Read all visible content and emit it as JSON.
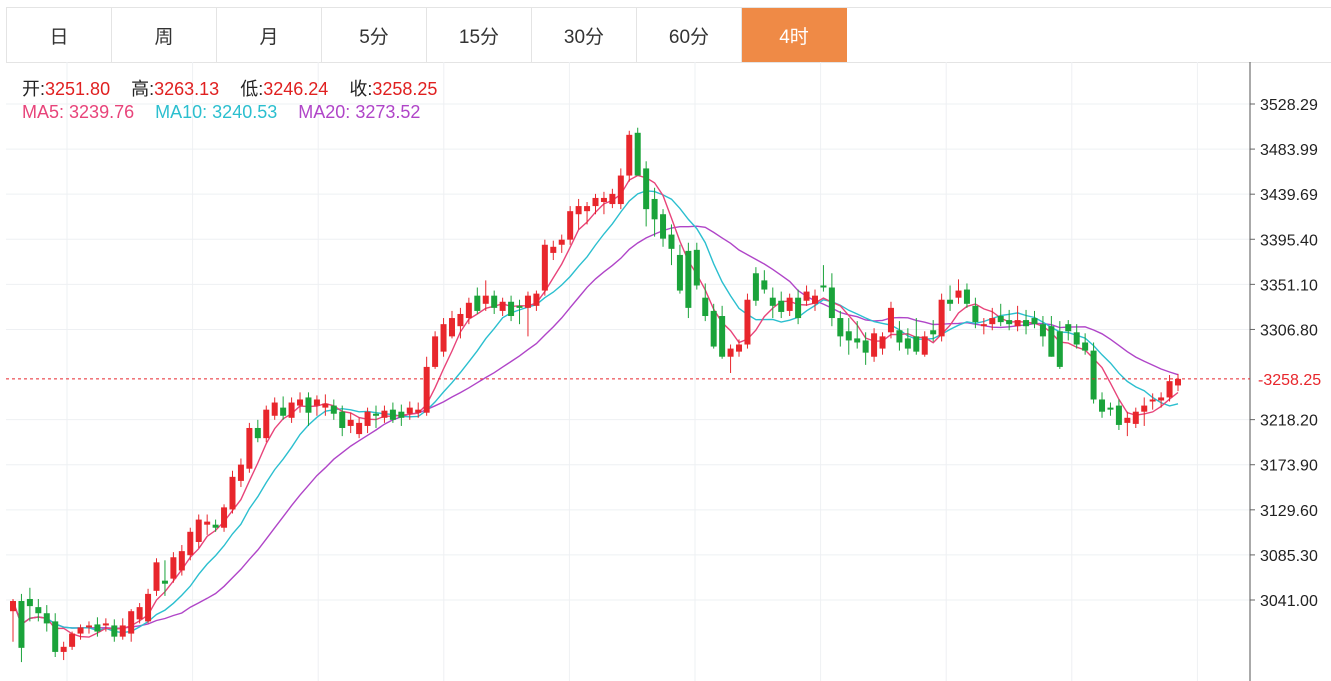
{
  "tabs": [
    {
      "label": "日",
      "active": false
    },
    {
      "label": "周",
      "active": false
    },
    {
      "label": "月",
      "active": false
    },
    {
      "label": "5分",
      "active": false
    },
    {
      "label": "15分",
      "active": false
    },
    {
      "label": "30分",
      "active": false
    },
    {
      "label": "60分",
      "active": false
    },
    {
      "label": "4时",
      "active": true
    }
  ],
  "ohlc": {
    "open_label": "开:",
    "open": "3251.80",
    "high_label": "高:",
    "high": "3263.13",
    "low_label": "低:",
    "low": "3246.24",
    "close_label": "收:",
    "close": "3258.25"
  },
  "ma": {
    "ma5_label": "MA5:",
    "ma5": "3239.76",
    "ma10_label": "MA10:",
    "ma10": "3240.53",
    "ma20_label": "MA20:",
    "ma20": "3273.52"
  },
  "colors": {
    "up": "#e8262c",
    "down": "#1aa33a",
    "ma5": "#e8447a",
    "ma10": "#2bbfcf",
    "ma20": "#b045c8",
    "active_tab": "#ef8a46"
  },
  "chart_data": {
    "type": "candlestick",
    "ylim": [
      2995,
      3565
    ],
    "yticks": [
      "3528.29",
      "3483.99",
      "3439.69",
      "3395.40",
      "3351.10",
      "3306.80",
      "3218.20",
      "3173.90",
      "3129.60",
      "3085.30",
      "3041.00"
    ],
    "last_price": "3258.25",
    "candles": [
      [
        3030,
        3042,
        3000,
        3040
      ],
      [
        3040,
        3047,
        2980,
        2994
      ],
      [
        3042,
        3053,
        3020,
        3035
      ],
      [
        3034,
        3042,
        3020,
        3028
      ],
      [
        3028,
        3036,
        3010,
        3018
      ],
      [
        3020,
        3028,
        2985,
        2990
      ],
      [
        2990,
        3000,
        2982,
        2995
      ],
      [
        2995,
        3010,
        2992,
        3008
      ],
      [
        3008,
        3017,
        3002,
        3014
      ],
      [
        3014,
        3020,
        3008,
        3016
      ],
      [
        3017,
        3024,
        3005,
        3010
      ],
      [
        3016,
        3023,
        3010,
        3018
      ],
      [
        3016,
        3022,
        3000,
        3005
      ],
      [
        3005,
        3023,
        3002,
        3016
      ],
      [
        3008,
        3032,
        3000,
        3030
      ],
      [
        3022,
        3038,
        3018,
        3034
      ],
      [
        3020,
        3052,
        3018,
        3047
      ],
      [
        3050,
        3082,
        3045,
        3078
      ],
      [
        3060,
        3080,
        3045,
        3057
      ],
      [
        3062,
        3088,
        3058,
        3083
      ],
      [
        3070,
        3095,
        3065,
        3089
      ],
      [
        3085,
        3112,
        3080,
        3108
      ],
      [
        3098,
        3125,
        3092,
        3120
      ],
      [
        3115,
        3125,
        3105,
        3118
      ],
      [
        3115,
        3120,
        3108,
        3112
      ],
      [
        3112,
        3135,
        3108,
        3132
      ],
      [
        3130,
        3168,
        3126,
        3162
      ],
      [
        3158,
        3180,
        3152,
        3174
      ],
      [
        3170,
        3215,
        3166,
        3210
      ],
      [
        3210,
        3218,
        3196,
        3200
      ],
      [
        3200,
        3232,
        3196,
        3228
      ],
      [
        3222,
        3240,
        3218,
        3235
      ],
      [
        3230,
        3241,
        3218,
        3222
      ],
      [
        3220,
        3240,
        3215,
        3235
      ],
      [
        3232,
        3245,
        3225,
        3238
      ],
      [
        3240,
        3245,
        3212,
        3225
      ],
      [
        3232,
        3242,
        3222,
        3238
      ],
      [
        3230,
        3243,
        3222,
        3234
      ],
      [
        3232,
        3238,
        3218,
        3224
      ],
      [
        3226,
        3232,
        3202,
        3210
      ],
      [
        3212,
        3225,
        3205,
        3218
      ],
      [
        3204,
        3220,
        3200,
        3215
      ],
      [
        3212,
        3230,
        3205,
        3226
      ],
      [
        3224,
        3232,
        3210,
        3222
      ],
      [
        3220,
        3232,
        3215,
        3227
      ],
      [
        3228,
        3235,
        3215,
        3218
      ],
      [
        3226,
        3233,
        3212,
        3220
      ],
      [
        3224,
        3236,
        3218,
        3230
      ],
      [
        3225,
        3235,
        3220,
        3228
      ],
      [
        3225,
        3280,
        3222,
        3270
      ],
      [
        3270,
        3305,
        3268,
        3300
      ],
      [
        3285,
        3318,
        3280,
        3312
      ],
      [
        3300,
        3325,
        3298,
        3318
      ],
      [
        3310,
        3328,
        3298,
        3322
      ],
      [
        3318,
        3338,
        3312,
        3333
      ],
      [
        3340,
        3348,
        3322,
        3325
      ],
      [
        3332,
        3355,
        3325,
        3340
      ],
      [
        3340,
        3345,
        3322,
        3328
      ],
      [
        3325,
        3338,
        3320,
        3334
      ],
      [
        3334,
        3340,
        3315,
        3320
      ],
      [
        3330,
        3336,
        3312,
        3328
      ],
      [
        3328,
        3344,
        3300,
        3340
      ],
      [
        3330,
        3345,
        3325,
        3342
      ],
      [
        3345,
        3395,
        3340,
        3390
      ],
      [
        3382,
        3394,
        3375,
        3388
      ],
      [
        3390,
        3400,
        3382,
        3395
      ],
      [
        3395,
        3428,
        3390,
        3423
      ],
      [
        3420,
        3435,
        3405,
        3428
      ],
      [
        3423,
        3432,
        3410,
        3428
      ],
      [
        3428,
        3440,
        3420,
        3436
      ],
      [
        3432,
        3442,
        3420,
        3436
      ],
      [
        3430,
        3445,
        3426,
        3440
      ],
      [
        3430,
        3465,
        3425,
        3458
      ],
      [
        3458,
        3502,
        3452,
        3498
      ],
      [
        3500,
        3505,
        3462,
        3458
      ],
      [
        3465,
        3472,
        3408,
        3425
      ],
      [
        3435,
        3446,
        3398,
        3415
      ],
      [
        3420,
        3425,
        3388,
        3396
      ],
      [
        3400,
        3410,
        3370,
        3386
      ],
      [
        3380,
        3390,
        3342,
        3345
      ],
      [
        3384,
        3392,
        3318,
        3328
      ],
      [
        3385,
        3392,
        3346,
        3350
      ],
      [
        3338,
        3352,
        3315,
        3320
      ],
      [
        3325,
        3332,
        3288,
        3290
      ],
      [
        3320,
        3330,
        3278,
        3280
      ],
      [
        3280,
        3292,
        3264,
        3288
      ],
      [
        3285,
        3297,
        3280,
        3292
      ],
      [
        3292,
        3342,
        3288,
        3336
      ],
      [
        3362,
        3368,
        3330,
        3335
      ],
      [
        3355,
        3365,
        3342,
        3346
      ],
      [
        3338,
        3348,
        3318,
        3330
      ],
      [
        3335,
        3344,
        3318,
        3324
      ],
      [
        3325,
        3342,
        3320,
        3338
      ],
      [
        3338,
        3346,
        3312,
        3318
      ],
      [
        3335,
        3350,
        3330,
        3344
      ],
      [
        3332,
        3346,
        3325,
        3340
      ],
      [
        3350,
        3370,
        3344,
        3348
      ],
      [
        3348,
        3362,
        3310,
        3318
      ],
      [
        3318,
        3325,
        3290,
        3300
      ],
      [
        3305,
        3318,
        3282,
        3296
      ],
      [
        3298,
        3315,
        3288,
        3294
      ],
      [
        3296,
        3304,
        3272,
        3284
      ],
      [
        3280,
        3308,
        3275,
        3303
      ],
      [
        3288,
        3304,
        3282,
        3300
      ],
      [
        3304,
        3334,
        3298,
        3328
      ],
      [
        3306,
        3315,
        3286,
        3294
      ],
      [
        3298,
        3308,
        3282,
        3288
      ],
      [
        3300,
        3318,
        3282,
        3285
      ],
      [
        3282,
        3305,
        3280,
        3300
      ],
      [
        3306,
        3316,
        3295,
        3302
      ],
      [
        3300,
        3342,
        3295,
        3336
      ],
      [
        3336,
        3350,
        3325,
        3332
      ],
      [
        3338,
        3356,
        3332,
        3345
      ],
      [
        3346,
        3352,
        3328,
        3332
      ],
      [
        3330,
        3338,
        3308,
        3314
      ],
      [
        3310,
        3318,
        3302,
        3312
      ],
      [
        3312,
        3328,
        3306,
        3318
      ],
      [
        3320,
        3332,
        3310,
        3314
      ],
      [
        3316,
        3326,
        3306,
        3312
      ],
      [
        3310,
        3330,
        3305,
        3316
      ],
      [
        3316,
        3326,
        3302,
        3310
      ],
      [
        3318,
        3325,
        3308,
        3312
      ],
      [
        3312,
        3320,
        3290,
        3300
      ],
      [
        3310,
        3320,
        3280,
        3280
      ],
      [
        3305,
        3315,
        3268,
        3270
      ],
      [
        3312,
        3316,
        3296,
        3305
      ],
      [
        3304,
        3312,
        3288,
        3292
      ],
      [
        3294,
        3303,
        3282,
        3286
      ],
      [
        3286,
        3294,
        3234,
        3238
      ],
      [
        3238,
        3245,
        3220,
        3226
      ],
      [
        3230,
        3235,
        3222,
        3228
      ],
      [
        3232,
        3238,
        3208,
        3213
      ],
      [
        3215,
        3226,
        3202,
        3220
      ],
      [
        3214,
        3230,
        3210,
        3226
      ],
      [
        3226,
        3240,
        3212,
        3232
      ],
      [
        3236,
        3244,
        3228,
        3238
      ],
      [
        3237,
        3245,
        3230,
        3240
      ],
      [
        3240,
        3262,
        3236,
        3256
      ],
      [
        3251.8,
        3263.13,
        3246.24,
        3258.25
      ]
    ]
  }
}
